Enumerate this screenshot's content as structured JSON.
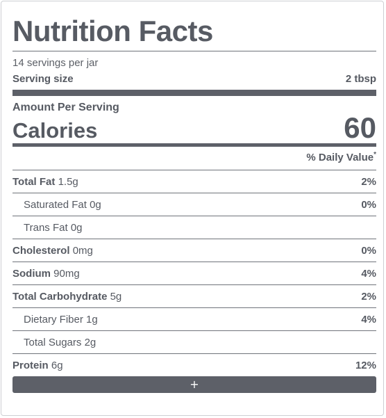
{
  "label": {
    "title": "Nutrition Facts",
    "servings_per_container": "14 servings per jar",
    "serving_size_label": "Serving size",
    "serving_size_value": "2 tbsp",
    "amount_per_serving": "Amount Per Serving",
    "calories_label": "Calories",
    "calories_value": "60",
    "daily_value_header": "% Daily Value",
    "daily_value_mark": "*",
    "nutrients": [
      {
        "name": "Total Fat",
        "amount": "1.5g",
        "dv": "2%"
      },
      {
        "name": "Saturated Fat",
        "amount": "0g",
        "dv": "0%"
      },
      {
        "name": "Trans Fat",
        "amount": "0g",
        "dv": ""
      },
      {
        "name": "Cholesterol",
        "amount": "0mg",
        "dv": "0%"
      },
      {
        "name": "Sodium",
        "amount": "90mg",
        "dv": "4%"
      },
      {
        "name": "Total Carbohydrate",
        "amount": "5g",
        "dv": "2%"
      },
      {
        "name": "Dietary Fiber",
        "amount": "1g",
        "dv": "4%"
      },
      {
        "name": "Total Sugars",
        "amount": "2g",
        "dv": ""
      },
      {
        "name": "Protein",
        "amount": "6g",
        "dv": "12%"
      }
    ],
    "expand_label": "+"
  }
}
